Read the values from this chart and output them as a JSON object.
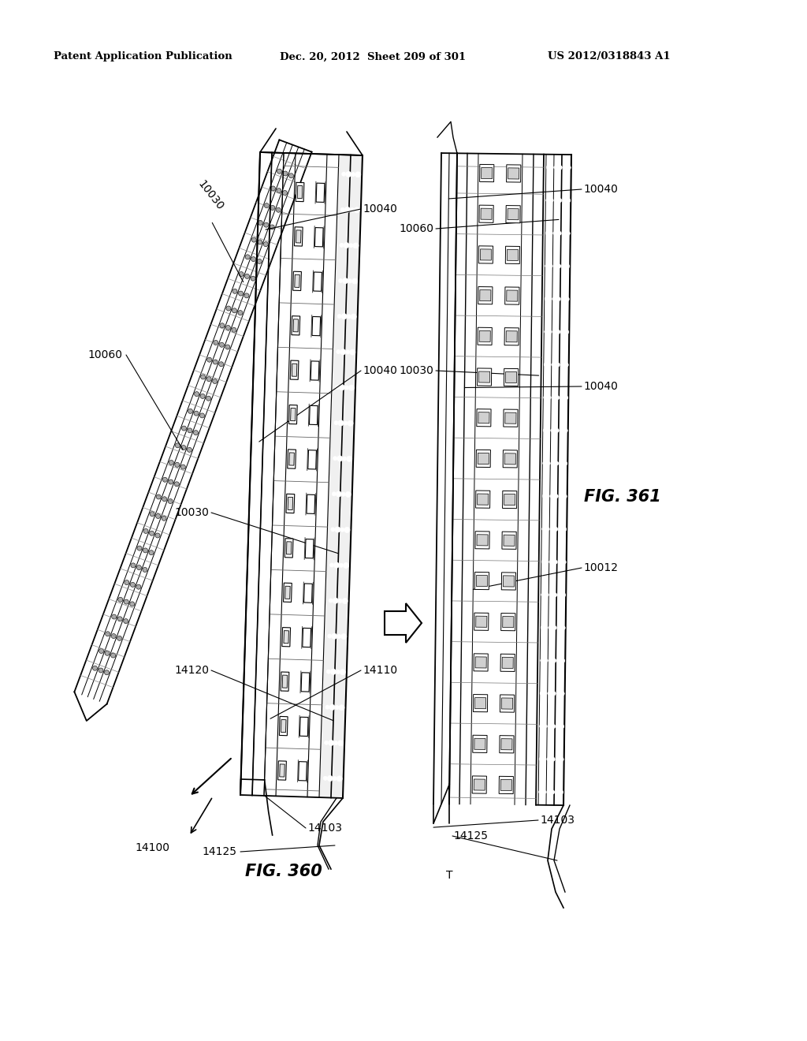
{
  "header_left": "Patent Application Publication",
  "header_mid": "Dec. 20, 2012  Sheet 209 of 301",
  "header_right": "US 2012/0318843 A1",
  "fig360_label": "FIG. 360",
  "fig361_label": "FIG. 361",
  "background_color": "#ffffff",
  "line_color": "#000000"
}
